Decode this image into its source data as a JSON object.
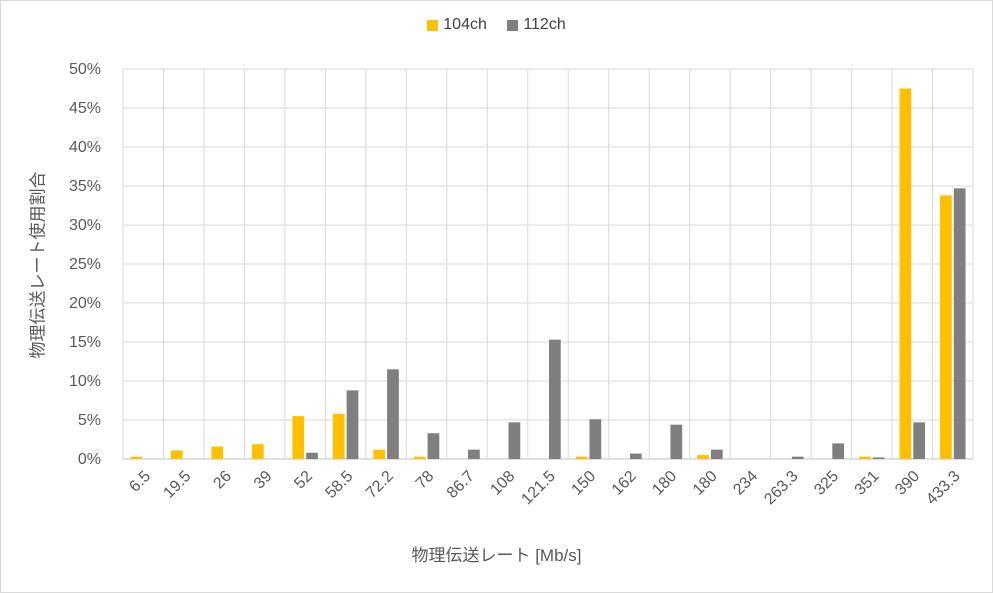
{
  "chart_data": {
    "type": "bar",
    "categories": [
      "6.5",
      "19.5",
      "26",
      "39",
      "52",
      "58.5",
      "72.2",
      "78",
      "86.7",
      "108",
      "121.5",
      "150",
      "162",
      "180",
      "180",
      "234",
      "263.3",
      "325",
      "351",
      "390",
      "433.3"
    ],
    "series": [
      {
        "name": "104ch",
        "color": "#FFC000",
        "values": [
          0.3,
          1.1,
          1.6,
          1.9,
          5.5,
          5.8,
          1.2,
          0.3,
          0,
          0,
          0,
          0.3,
          0,
          0,
          0.5,
          0,
          0,
          0,
          0.3,
          47.5,
          33.8
        ]
      },
      {
        "name": "112ch",
        "color": "#7F7F7F",
        "values": [
          0,
          0,
          0,
          0,
          0.8,
          8.8,
          11.5,
          3.3,
          1.2,
          4.7,
          15.3,
          5.1,
          0.7,
          4.4,
          1.2,
          0,
          0.3,
          2.0,
          0.2,
          4.7,
          34.7
        ]
      }
    ],
    "xlabel": "物理伝送レート [Mb/s]",
    "ylabel": "物理伝送レート使用割合",
    "ylim": [
      0,
      50
    ],
    "yticks": [
      "0%",
      "5%",
      "10%",
      "15%",
      "20%",
      "25%",
      "30%",
      "35%",
      "40%",
      "45%",
      "50%"
    ],
    "grid": true,
    "legend_position": "top"
  }
}
